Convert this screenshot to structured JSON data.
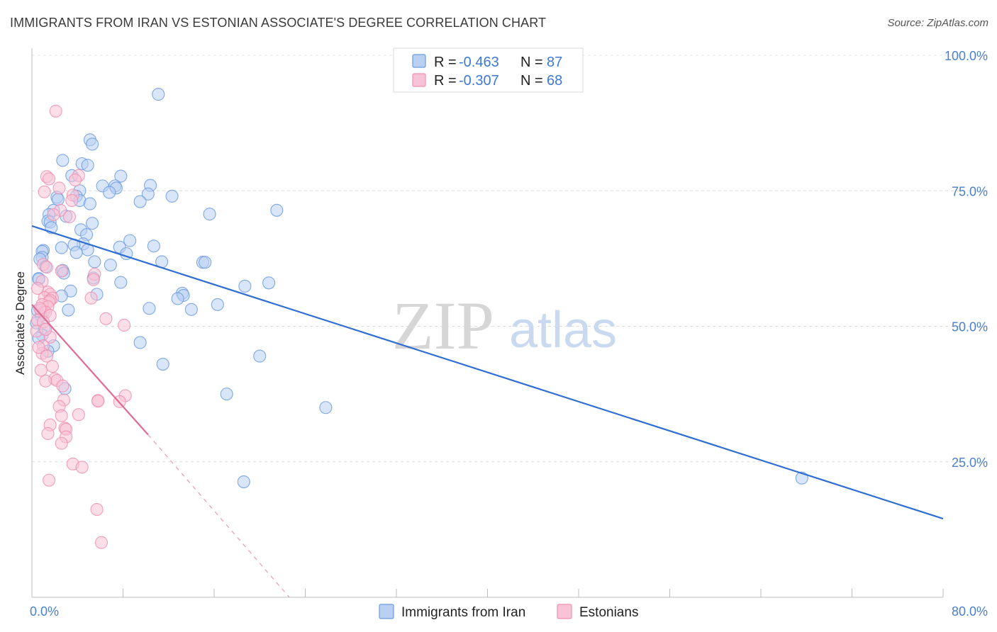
{
  "header": {
    "title": "IMMIGRANTS FROM IRAN VS ESTONIAN ASSOCIATE'S DEGREE CORRELATION CHART",
    "source": "Source: ZipAtlas.com"
  },
  "watermark": {
    "zip": "ZIP",
    "atlas": "atlas"
  },
  "legend": {
    "r_label": "R =",
    "n_label": "N =",
    "rows": [
      {
        "r": "-0.463",
        "n": "87",
        "color": "#6b9be0"
      },
      {
        "r": "-0.307",
        "n": "68",
        "color": "#f08fb0"
      }
    ]
  },
  "chart_data": {
    "type": "scatter",
    "title": "IMMIGRANTS FROM IRAN VS ESTONIAN ASSOCIATE'S DEGREE CORRELATION CHART",
    "xlabel": "",
    "ylabel": "Associate's Degree",
    "xlim": [
      0,
      80
    ],
    "ylim": [
      0,
      100
    ],
    "x_tick_labels": [
      "0.0%",
      "80.0%"
    ],
    "y_ticks": [
      25,
      50,
      75,
      100
    ],
    "y_tick_labels": [
      "25.0%",
      "50.0%",
      "75.0%",
      "100.0%"
    ],
    "grid": true,
    "legend_position": "top-center",
    "series": [
      {
        "name": "Immigrants from Iran",
        "color": "#6b9be0",
        "fill": "#b9d0f2",
        "trendline": {
          "x": [
            0,
            80
          ],
          "y": [
            68.5,
            14.5
          ],
          "dashed_extension": false
        },
        "points": [
          [
            11.1,
            92.8
          ],
          [
            5.1,
            84.4
          ],
          [
            5.3,
            83.6
          ],
          [
            2.7,
            80.6
          ],
          [
            4.4,
            80.0
          ],
          [
            4.9,
            79.7
          ],
          [
            3.5,
            77.8
          ],
          [
            7.8,
            77.7
          ],
          [
            6.2,
            75.9
          ],
          [
            7.3,
            75.9
          ],
          [
            7.4,
            75.5
          ],
          [
            10.4,
            76.0
          ],
          [
            4.2,
            75.0
          ],
          [
            6.8,
            74.7
          ],
          [
            10.2,
            74.4
          ],
          [
            12.3,
            74.0
          ],
          [
            3.9,
            74.0
          ],
          [
            2.2,
            73.8
          ],
          [
            2.3,
            73.4
          ],
          [
            4.2,
            73.2
          ],
          [
            9.5,
            73.0
          ],
          [
            5.1,
            72.6
          ],
          [
            1.9,
            71.4
          ],
          [
            21.5,
            71.4
          ],
          [
            15.6,
            70.7
          ],
          [
            1.5,
            70.6
          ],
          [
            3.0,
            70.3
          ],
          [
            1.4,
            69.4
          ],
          [
            1.6,
            69.2
          ],
          [
            5.3,
            69.0
          ],
          [
            1.7,
            68.2
          ],
          [
            4.3,
            67.8
          ],
          [
            4.8,
            66.9
          ],
          [
            8.6,
            65.8
          ],
          [
            4.5,
            65.2
          ],
          [
            3.7,
            65.0
          ],
          [
            10.7,
            64.8
          ],
          [
            7.7,
            64.6
          ],
          [
            2.6,
            64.5
          ],
          [
            4.9,
            64.1
          ],
          [
            1.0,
            64.0
          ],
          [
            0.9,
            63.8
          ],
          [
            3.9,
            63.6
          ],
          [
            8.3,
            63.4
          ],
          [
            0.9,
            62.7
          ],
          [
            0.7,
            62.4
          ],
          [
            5.5,
            61.9
          ],
          [
            11.4,
            61.9
          ],
          [
            15.0,
            61.8
          ],
          [
            15.2,
            61.8
          ],
          [
            6.9,
            61.3
          ],
          [
            1.2,
            61.0
          ],
          [
            2.7,
            60.3
          ],
          [
            2.8,
            59.8
          ],
          [
            0.6,
            58.8
          ],
          [
            5.4,
            58.9
          ],
          [
            0.6,
            58.7
          ],
          [
            7.8,
            58.1
          ],
          [
            20.8,
            58.0
          ],
          [
            18.7,
            57.4
          ],
          [
            3.4,
            56.5
          ],
          [
            13.2,
            56.1
          ],
          [
            13.3,
            55.7
          ],
          [
            5.7,
            55.9
          ],
          [
            2.6,
            55.6
          ],
          [
            12.8,
            55.1
          ],
          [
            16.3,
            54.0
          ],
          [
            10.3,
            53.3
          ],
          [
            14.0,
            53.1
          ],
          [
            3.2,
            53.0
          ],
          [
            1.9,
            46.4
          ],
          [
            9.5,
            47.0
          ],
          [
            20.0,
            44.5
          ],
          [
            11.5,
            43.0
          ],
          [
            2.9,
            38.5
          ],
          [
            17.1,
            37.5
          ],
          [
            25.8,
            35.0
          ],
          [
            18.6,
            21.3
          ],
          [
            67.6,
            22.0
          ],
          [
            0.5,
            52.9
          ],
          [
            1.0,
            52.6
          ],
          [
            0.8,
            51.9
          ],
          [
            0.4,
            50.6
          ],
          [
            1.1,
            49.5
          ],
          [
            0.9,
            48.4
          ],
          [
            0.6,
            47.8
          ],
          [
            1.4,
            45.4
          ]
        ]
      },
      {
        "name": "Estonians",
        "color": "#f08fb0",
        "fill": "#f8c3d6",
        "trendline": {
          "x": [
            0,
            10.2,
            22.6
          ],
          "y": [
            54.0,
            30.0,
            0.0
          ],
          "dashed_extension": true
        },
        "points": [
          [
            2.1,
            89.7
          ],
          [
            1.3,
            77.6
          ],
          [
            1.5,
            77.2
          ],
          [
            4.1,
            77.8
          ],
          [
            3.8,
            77.0
          ],
          [
            2.4,
            75.5
          ],
          [
            1.1,
            74.8
          ],
          [
            3.6,
            74.2
          ],
          [
            3.5,
            73.2
          ],
          [
            2.5,
            71.4
          ],
          [
            1.9,
            70.6
          ],
          [
            3.3,
            70.2
          ],
          [
            1.0,
            61.4
          ],
          [
            1.3,
            60.9
          ],
          [
            2.6,
            60.2
          ],
          [
            5.5,
            59.6
          ],
          [
            5.4,
            58.6
          ],
          [
            0.9,
            58.3
          ],
          [
            1.4,
            56.3
          ],
          [
            1.6,
            55.9
          ],
          [
            1.1,
            55.3
          ],
          [
            1.8,
            55.2
          ],
          [
            5.2,
            55.2
          ],
          [
            1.6,
            54.8
          ],
          [
            1.5,
            54.5
          ],
          [
            0.9,
            54.0
          ],
          [
            1.4,
            53.6
          ],
          [
            0.8,
            53.0
          ],
          [
            1.2,
            52.6
          ],
          [
            1.6,
            52.0
          ],
          [
            6.5,
            51.4
          ],
          [
            0.5,
            51.1
          ],
          [
            1.0,
            50.8
          ],
          [
            8.1,
            50.2
          ],
          [
            0.4,
            49.1
          ],
          [
            1.6,
            48.0
          ],
          [
            1.0,
            46.4
          ],
          [
            0.9,
            45.0
          ],
          [
            1.3,
            44.5
          ],
          [
            1.8,
            42.6
          ],
          [
            0.8,
            41.9
          ],
          [
            2.0,
            40.3
          ],
          [
            2.2,
            40.0
          ],
          [
            1.2,
            39.9
          ],
          [
            2.7,
            39.0
          ],
          [
            8.2,
            37.2
          ],
          [
            2.8,
            36.4
          ],
          [
            5.8,
            36.3
          ],
          [
            5.8,
            36.2
          ],
          [
            7.7,
            36.1
          ],
          [
            2.4,
            35.2
          ],
          [
            4.1,
            33.7
          ],
          [
            2.6,
            33.5
          ],
          [
            1.6,
            31.8
          ],
          [
            2.9,
            31.2
          ],
          [
            3.0,
            31.0
          ],
          [
            1.4,
            30.2
          ],
          [
            3.0,
            29.6
          ],
          [
            2.6,
            28.4
          ],
          [
            3.6,
            24.6
          ],
          [
            4.4,
            24.0
          ],
          [
            1.5,
            21.6
          ],
          [
            5.7,
            16.2
          ],
          [
            6.1,
            10.1
          ],
          [
            0.5,
            57.0
          ],
          [
            0.7,
            53.3
          ],
          [
            1.2,
            49.4
          ],
          [
            0.6,
            46.1
          ]
        ]
      }
    ]
  }
}
